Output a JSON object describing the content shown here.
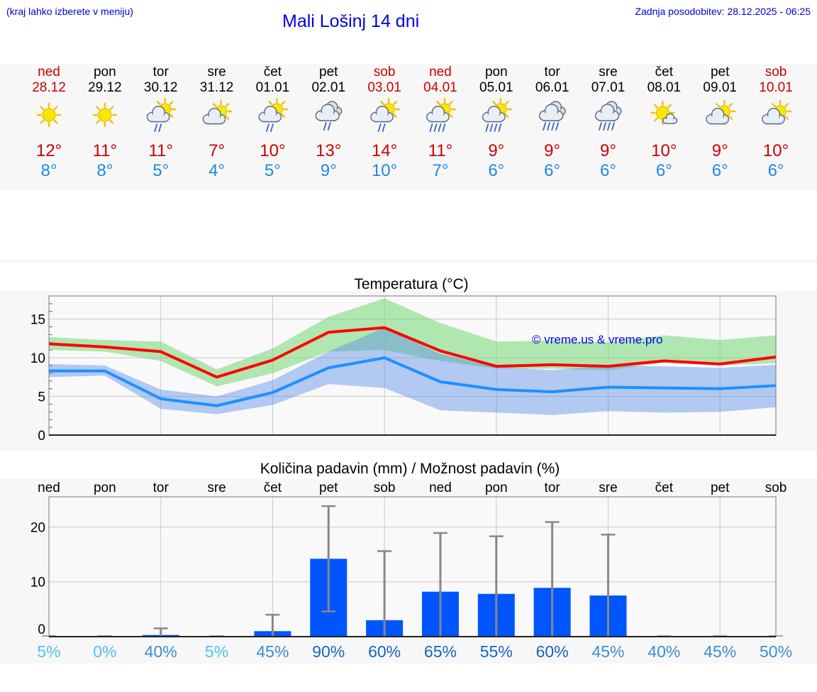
{
  "header": {
    "menu_note": "(kraj lahko izberete v meniju)",
    "title": "Mali Lošinj 14 dni",
    "last_update": "Zadnja posodobitev: 28.12.2025 - 06:25"
  },
  "colors": {
    "weekend": "#cc0000",
    "weekday": "#000000",
    "tmax": "#ff0000",
    "tmin": "#1e90ff",
    "bars": "#0055ff",
    "watermark": "#0000ee"
  },
  "days": [
    {
      "dow": "ned",
      "date": "28.12",
      "weekend": true,
      "icon": "sunny-icon",
      "tmax": "12°",
      "tmin": "8°"
    },
    {
      "dow": "pon",
      "date": "29.12",
      "weekend": false,
      "icon": "sunny-icon",
      "tmax": "11°",
      "tmin": "8°"
    },
    {
      "dow": "tor",
      "date": "30.12",
      "weekend": false,
      "icon": "sun-cloud-rain-icon",
      "tmax": "11°",
      "tmin": "5°"
    },
    {
      "dow": "sre",
      "date": "31.12",
      "weekend": false,
      "icon": "sun-cloud-icon",
      "tmax": "7°",
      "tmin": "4°"
    },
    {
      "dow": "čet",
      "date": "01.01",
      "weekend": false,
      "icon": "sun-cloud-rain-icon",
      "tmax": "10°",
      "tmin": "5°"
    },
    {
      "dow": "pet",
      "date": "02.01",
      "weekend": false,
      "icon": "cloud-rain-icon",
      "tmax": "13°",
      "tmin": "9°"
    },
    {
      "dow": "sob",
      "date": "03.01",
      "weekend": true,
      "icon": "sun-cloud-rain-icon",
      "tmax": "14°",
      "tmin": "10°"
    },
    {
      "dow": "ned",
      "date": "04.01",
      "weekend": true,
      "icon": "sun-cloud-heavy-rain-icon",
      "tmax": "11°",
      "tmin": "7°"
    },
    {
      "dow": "pon",
      "date": "05.01",
      "weekend": false,
      "icon": "sun-cloud-heavy-rain-icon",
      "tmax": "9°",
      "tmin": "6°"
    },
    {
      "dow": "tor",
      "date": "06.01",
      "weekend": false,
      "icon": "cloud-heavy-rain-icon",
      "tmax": "9°",
      "tmin": "6°"
    },
    {
      "dow": "sre",
      "date": "07.01",
      "weekend": false,
      "icon": "cloud-heavy-rain-icon",
      "tmax": "9°",
      "tmin": "6°"
    },
    {
      "dow": "čet",
      "date": "08.01",
      "weekend": false,
      "icon": "sun-small-cloud-icon",
      "tmax": "10°",
      "tmin": "6°"
    },
    {
      "dow": "pet",
      "date": "09.01",
      "weekend": false,
      "icon": "sun-cloud-icon",
      "tmax": "9°",
      "tmin": "6°"
    },
    {
      "dow": "sob",
      "date": "10.01",
      "weekend": true,
      "icon": "sun-cloud-icon",
      "tmax": "10°",
      "tmin": "6°"
    }
  ],
  "chart_data": [
    {
      "type": "line",
      "title": "Temperatura (°C)",
      "categories": [
        "28.12",
        "29.12",
        "30.12",
        "31.12",
        "01.01",
        "02.01",
        "03.01",
        "04.01",
        "05.01",
        "06.01",
        "07.01",
        "08.01",
        "09.01",
        "10.01"
      ],
      "ylim": [
        0,
        18
      ],
      "yticks": [
        0,
        5,
        10,
        15
      ],
      "watermark": "© vreme.us & vreme.pro",
      "series": [
        {
          "name": "max",
          "values": [
            11.8,
            11.4,
            10.8,
            7.5,
            9.7,
            13.3,
            13.9,
            10.9,
            8.9,
            9.1,
            8.9,
            9.6,
            9.2,
            10.1
          ],
          "range_low": [
            11.0,
            10.8,
            9.6,
            6.3,
            8.0,
            10.8,
            11.0,
            9.6,
            8.6,
            8.6,
            8.4,
            9.4,
            9.0,
            9.3
          ],
          "range_high": [
            12.7,
            12.3,
            12.1,
            8.5,
            11.2,
            15.3,
            17.7,
            14.5,
            12.1,
            12.2,
            12.0,
            12.9,
            12.3,
            12.9
          ]
        },
        {
          "name": "min",
          "values": [
            8.3,
            8.3,
            4.7,
            3.8,
            5.5,
            8.7,
            10.0,
            6.9,
            5.9,
            5.6,
            6.2,
            6.1,
            6.0,
            6.4
          ],
          "range_low": [
            7.5,
            7.7,
            3.4,
            2.7,
            3.9,
            6.6,
            6.1,
            3.2,
            2.9,
            2.6,
            3.1,
            2.9,
            3.0,
            3.6
          ],
          "range_high": [
            9.2,
            9.0,
            5.9,
            5.0,
            7.1,
            10.8,
            13.9,
            10.5,
            8.8,
            8.4,
            9.0,
            8.9,
            8.7,
            9.1
          ]
        }
      ]
    },
    {
      "type": "bar",
      "title": "Količina padavin (mm) / Možnost padavin (%)",
      "categories": [
        "ned",
        "pon",
        "tor",
        "sre",
        "čet",
        "pet",
        "sob",
        "ned",
        "pon",
        "tor",
        "sre",
        "čet",
        "pet",
        "sob"
      ],
      "ylim": [
        0,
        25.5
      ],
      "yticks": [
        0,
        10,
        20
      ],
      "values": [
        0,
        0,
        0.3,
        0,
        1.0,
        14.2,
        3.0,
        8.2,
        7.8,
        8.9,
        7.5,
        0,
        0,
        0
      ],
      "error_high": [
        0,
        0,
        1.5,
        0,
        4.0,
        23.8,
        15.6,
        18.9,
        18.3,
        20.9,
        18.6,
        0,
        0,
        0
      ],
      "error_low": [
        0,
        0,
        0,
        0,
        0,
        4.6,
        0,
        0,
        0,
        0,
        0,
        0,
        0,
        0
      ],
      "probability": [
        "5%",
        "0%",
        "40%",
        "5%",
        "45%",
        "90%",
        "60%",
        "65%",
        "55%",
        "60%",
        "45%",
        "40%",
        "45%",
        "50%"
      ],
      "probability_values": [
        5,
        0,
        40,
        5,
        45,
        90,
        60,
        65,
        55,
        60,
        45,
        40,
        45,
        50
      ]
    }
  ]
}
